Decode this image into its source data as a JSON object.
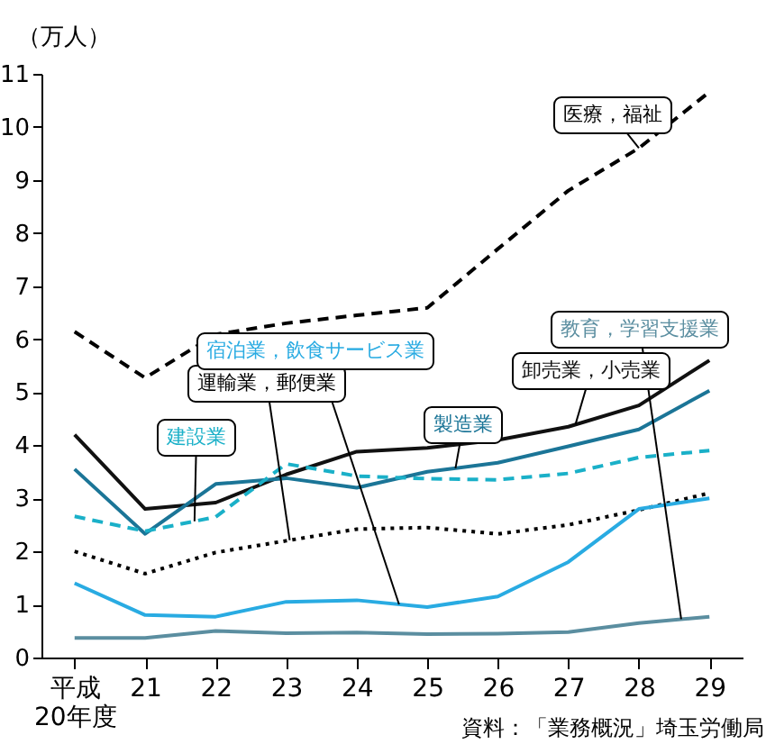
{
  "chart_data": {
    "type": "line",
    "ylabel": "（万人）",
    "categories": [
      "平成\n20年度",
      "21",
      "22",
      "23",
      "24",
      "25",
      "26",
      "27",
      "28",
      "29"
    ],
    "ylim": [
      0,
      11
    ],
    "yticks": [
      0,
      1,
      2,
      3,
      4,
      5,
      6,
      7,
      8,
      9,
      10,
      11
    ],
    "grid": false,
    "legend": false,
    "marker": "none",
    "annotations": [
      "資料：「業務概況」埼玉労働局"
    ],
    "series": [
      {
        "name": "医療，福祉",
        "color": "#000000",
        "line_style": "dashed",
        "values": [
          6.14,
          5.27,
          6.09,
          6.3,
          6.45,
          6.59,
          7.7,
          8.8,
          9.6,
          10.66
        ]
      },
      {
        "name": "卸売業，小売業",
        "color": "#111111",
        "line_style": "solid",
        "values": [
          4.2,
          2.8,
          2.92,
          3.45,
          3.88,
          3.95,
          4.1,
          4.35,
          4.75,
          5.6
        ]
      },
      {
        "name": "製造業",
        "color": "#1b7597",
        "line_style": "solid",
        "values": [
          3.55,
          2.33,
          3.27,
          3.38,
          3.2,
          3.5,
          3.67,
          3.98,
          4.3,
          5.03
        ]
      },
      {
        "name": "建設業",
        "color": "#1ab0c8",
        "line_style": "dashed",
        "values": [
          2.66,
          2.38,
          2.65,
          3.65,
          3.42,
          3.37,
          3.35,
          3.47,
          3.77,
          3.9
        ]
      },
      {
        "name": "運輸業，郵便業",
        "color": "#000000",
        "line_style": "dotted",
        "values": [
          2.0,
          1.58,
          1.98,
          2.2,
          2.42,
          2.45,
          2.33,
          2.5,
          2.78,
          3.1
        ]
      },
      {
        "name": "宿泊業，飲食サービス業",
        "color": "#29abe2",
        "line_style": "solid",
        "values": [
          1.4,
          0.8,
          0.77,
          1.05,
          1.08,
          0.95,
          1.15,
          1.8,
          2.8,
          3.0
        ]
      },
      {
        "name": "教育，学習支援業",
        "color": "#5b8ea0",
        "line_style": "solid",
        "values": [
          0.37,
          0.37,
          0.5,
          0.46,
          0.47,
          0.44,
          0.45,
          0.48,
          0.65,
          0.77
        ]
      }
    ]
  }
}
